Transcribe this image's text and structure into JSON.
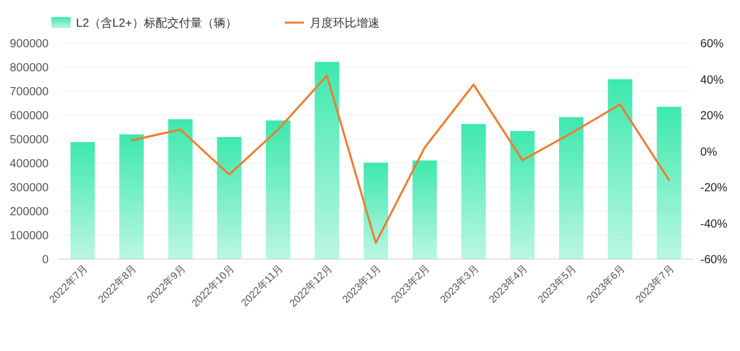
{
  "chart_data": {
    "type": "bar",
    "categories": [
      "2022年7月",
      "2022年8月",
      "2022年9月",
      "2022年10月",
      "2022年11月",
      "2022年12月",
      "2023年1月",
      "2023年2月",
      "2023年3月",
      "2023年4月",
      "2023年5月",
      "2023年6月",
      "2023年7月"
    ],
    "series": [
      {
        "name": "L2（含L2+）标配交付量（辆）",
        "color": "#3de8ad",
        "values": [
          488000,
          520000,
          583000,
          509000,
          578000,
          822000,
          402000,
          411000,
          563000,
          534000,
          592000,
          750000,
          635000
        ]
      },
      {
        "name": "月度环比增速",
        "type": "line",
        "axis": "y2",
        "color": "#ed7d31",
        "values": [
          null,
          6,
          12,
          -13,
          12,
          42,
          -51,
          2,
          37,
          -5,
          10,
          26,
          -16
        ]
      }
    ],
    "ylim": [
      0,
      900000
    ],
    "yticks": [
      0,
      100000,
      200000,
      300000,
      400000,
      500000,
      600000,
      700000,
      800000,
      900000
    ],
    "y2lim": [
      -60,
      60
    ],
    "y2ticks": [
      {
        "value": -60,
        "label": "-60%"
      },
      {
        "value": -40,
        "label": "-40%"
      },
      {
        "value": -20,
        "label": "-20%"
      },
      {
        "value": 0,
        "label": "0%"
      },
      {
        "value": 20,
        "label": "20%"
      },
      {
        "value": 40,
        "label": "40%"
      },
      {
        "value": 60,
        "label": "60%"
      }
    ],
    "grid": "y",
    "legend": "top",
    "marker": "none",
    "line_style": "solid"
  }
}
